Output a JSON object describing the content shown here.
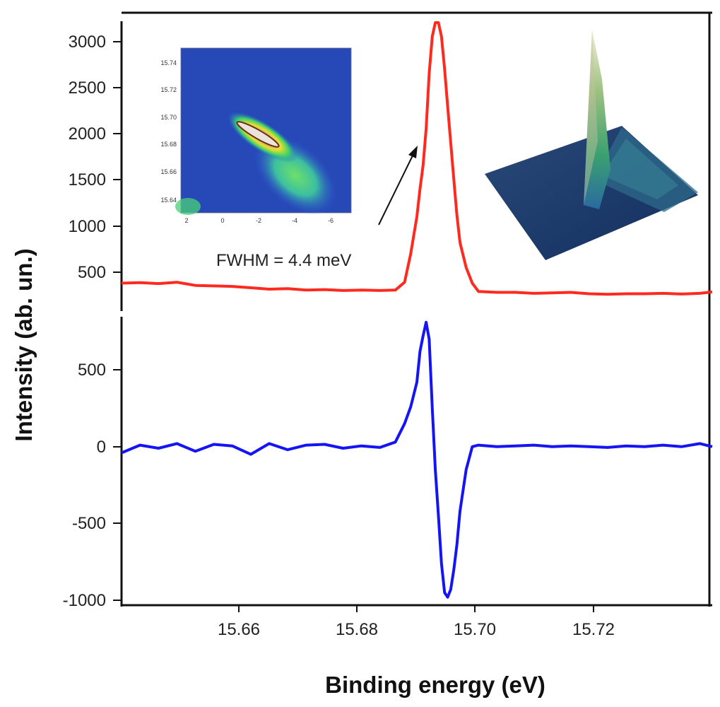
{
  "chart_data": {
    "type": "line",
    "xlabel": "Binding energy (eV)",
    "ylabel": "Intensity (ab. un.)",
    "xlim": [
      15.642,
      15.738
    ],
    "x_ticks": [
      "15.66",
      "15.68",
      "15.70",
      "15.72"
    ],
    "panels": [
      {
        "name": "spectrum",
        "ylim": [
          200,
          3200
        ],
        "y_ticks": [
          "500",
          "1000",
          "1500",
          "2000",
          "2500",
          "3000"
        ],
        "series": [
          {
            "name": "intensity",
            "color": "#ff2a1f",
            "x": [
              15.642,
              15.645,
              15.648,
              15.651,
              15.654,
              15.657,
              15.66,
              15.663,
              15.666,
              15.669,
              15.672,
              15.675,
              15.678,
              15.681,
              15.684,
              15.6865,
              15.688,
              15.689,
              15.69,
              15.6905,
              15.691,
              15.6915,
              15.692,
              15.6925,
              15.693,
              15.6935,
              15.694,
              15.6945,
              15.695,
              15.6955,
              15.696,
              15.6965,
              15.697,
              15.698,
              15.699,
              15.7,
              15.703,
              15.706,
              15.709,
              15.712,
              15.715,
              15.718,
              15.721,
              15.724,
              15.727,
              15.73,
              15.733,
              15.736,
              15.738
            ],
            "values": [
              380,
              385,
              375,
              390,
              355,
              350,
              345,
              330,
              315,
              320,
              305,
              310,
              300,
              305,
              300,
              305,
              390,
              700,
              1100,
              1400,
              1650,
              2050,
              2650,
              3050,
              3200,
              3200,
              3050,
              2700,
              2300,
              1900,
              1500,
              1120,
              820,
              550,
              380,
              290,
              280,
              280,
              270,
              275,
              280,
              265,
              260,
              265,
              265,
              270,
              262,
              270,
              285
            ]
          }
        ]
      },
      {
        "name": "derivative",
        "ylim": [
          -1000,
          800
        ],
        "y_ticks": [
          "-1000",
          "-500",
          "0",
          "500"
        ],
        "series": [
          {
            "name": "derivative",
            "color": "#1414f5",
            "x": [
              15.642,
              15.645,
              15.648,
              15.651,
              15.654,
              15.657,
              15.66,
              15.663,
              15.666,
              15.669,
              15.672,
              15.675,
              15.678,
              15.681,
              15.684,
              15.6865,
              15.688,
              15.689,
              15.69,
              15.6905,
              15.691,
              15.6915,
              15.692,
              15.6925,
              15.693,
              15.6935,
              15.694,
              15.6945,
              15.695,
              15.6955,
              15.696,
              15.6965,
              15.697,
              15.698,
              15.699,
              15.7,
              15.703,
              15.706,
              15.709,
              15.712,
              15.715,
              15.718,
              15.721,
              15.724,
              15.727,
              15.73,
              15.733,
              15.736,
              15.738
            ],
            "values": [
              -40,
              10,
              -10,
              20,
              -30,
              15,
              5,
              -50,
              20,
              -20,
              10,
              15,
              -10,
              5,
              -5,
              30,
              150,
              260,
              420,
              620,
              720,
              810,
              700,
              250,
              -150,
              -450,
              -760,
              -950,
              -980,
              -930,
              -800,
              -640,
              -420,
              -150,
              0,
              10,
              0,
              5,
              10,
              0,
              5,
              0,
              -5,
              5,
              0,
              10,
              0,
              20,
              0
            ]
          }
        ]
      }
    ],
    "annotation": "FWHM = 4.4 meV",
    "inset_2d": {
      "x_ticks": [
        "2",
        "0",
        "-2",
        "-4",
        "-6"
      ],
      "y_ticks": [
        "15.74",
        "15.72",
        "15.70",
        "15.68",
        "15.66",
        "15.64"
      ]
    }
  }
}
